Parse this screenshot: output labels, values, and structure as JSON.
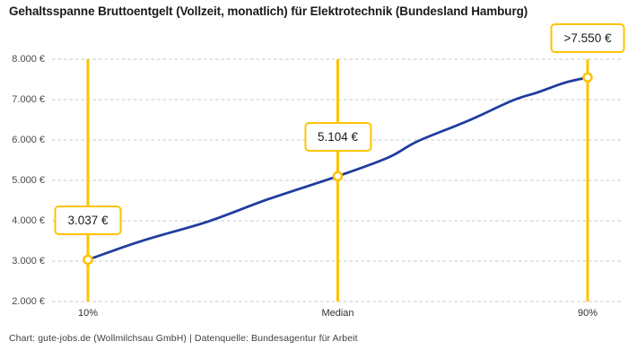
{
  "title": "Gehaltsspanne Bruttoentgelt (Vollzeit, monatlich) für Elektrotechnik (Bundesland Hamburg)",
  "footer": "Chart: gute-jobs.de (Wollmilchsau GmbH) | Datenquelle: Bundesagentur für Arbeit",
  "colors": {
    "accent_yellow": "#FDC300",
    "line_blue": "#1E3C9E",
    "grid_gray": "#C9C9C9",
    "title_text": "#1A1A1A",
    "axis_text": "#4A4A4A",
    "background": "#FFFFFF"
  },
  "chart_data": {
    "type": "line",
    "title": "Gehaltsspanne Bruttoentgelt (Vollzeit, monatlich) für Elektrotechnik (Bundesland Hamburg)",
    "xlabel": "",
    "ylabel": "",
    "ylim": [
      2000,
      8000
    ],
    "y_tick_step": 1000,
    "y_tick_labels": [
      "8.000 €",
      "7.000 €",
      "6.000 €",
      "5.000 €",
      "4.000 €",
      "3.000 €",
      "2.000 €"
    ],
    "x_tick_labels": [
      "10%",
      "Median",
      "90%"
    ],
    "grid": "horizontal-dashed",
    "legend": "none",
    "percentiles": [
      {
        "label": "10%",
        "value": 3037,
        "value_label": "3.037 €",
        "x_frac": 0
      },
      {
        "label": "Median",
        "value": 5104,
        "value_label": "5.104 €",
        "x_frac": 0.5
      },
      {
        "label": "90%",
        "value": 7550,
        "value_label": ">7.550 €",
        "x_frac": 1
      }
    ],
    "curve_samples": [
      [
        0,
        3037
      ],
      [
        0.11,
        3510
      ],
      [
        0.24,
        3980
      ],
      [
        0.36,
        4530
      ],
      [
        0.5,
        5104
      ],
      [
        0.6,
        5560
      ],
      [
        0.66,
        5970
      ],
      [
        0.76,
        6470
      ],
      [
        0.85,
        6980
      ],
      [
        0.9,
        7180
      ],
      [
        0.955,
        7420
      ],
      [
        1,
        7550
      ]
    ]
  }
}
